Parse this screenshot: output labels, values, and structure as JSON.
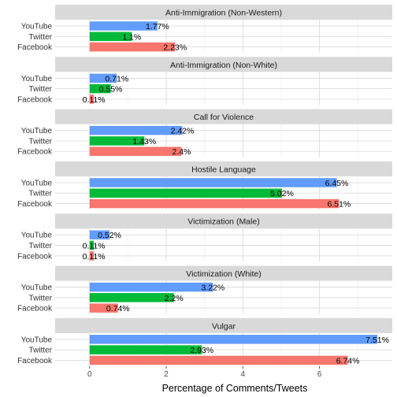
{
  "chart_data": {
    "type": "bar",
    "orientation": "horizontal",
    "faceted": true,
    "xlabel": "Percentage of Comments/Tweets",
    "ylabel": "",
    "xlim": [
      -0.9,
      7.9
    ],
    "x_ticks": [
      "0",
      "2",
      "4",
      "6"
    ],
    "x_tick_values": [
      0,
      2,
      4,
      6
    ],
    "grid": true,
    "categories": [
      "YouTube",
      "Twitter",
      "Facebook"
    ],
    "colors": {
      "YouTube": "#619CFF",
      "Twitter": "#00BA38",
      "Facebook": "#F8766D"
    },
    "panels": [
      {
        "title": "Anti-Immigration (Non-Western)",
        "values": [
          1.77,
          1.1,
          2.23
        ],
        "labels": [
          "1.77%",
          "1.1%",
          "2.23%"
        ]
      },
      {
        "title": "Anti-Immigration (Non-White)",
        "values": [
          0.71,
          0.55,
          0.11
        ],
        "labels": [
          "0.71%",
          "0.55%",
          "0.11%"
        ]
      },
      {
        "title": "Call for Violence",
        "values": [
          2.42,
          1.43,
          2.4
        ],
        "labels": [
          "2.42%",
          "1.43%",
          "2.4%"
        ]
      },
      {
        "title": "Hostile Language",
        "values": [
          6.45,
          5.02,
          6.51
        ],
        "labels": [
          "6.45%",
          "5.02%",
          "6.51%"
        ]
      },
      {
        "title": "Victimization (Male)",
        "values": [
          0.52,
          0.11,
          0.11
        ],
        "labels": [
          "0.52%",
          "0.11%",
          "0.11%"
        ]
      },
      {
        "title": "Victimization (White)",
        "values": [
          3.22,
          2.2,
          0.74
        ],
        "labels": [
          "3.22%",
          "2.2%",
          "0.74%"
        ]
      },
      {
        "title": "Vulgar",
        "values": [
          7.51,
          2.93,
          6.74
        ],
        "labels": [
          "7.51%",
          "2.93%",
          "6.74%"
        ]
      }
    ]
  }
}
